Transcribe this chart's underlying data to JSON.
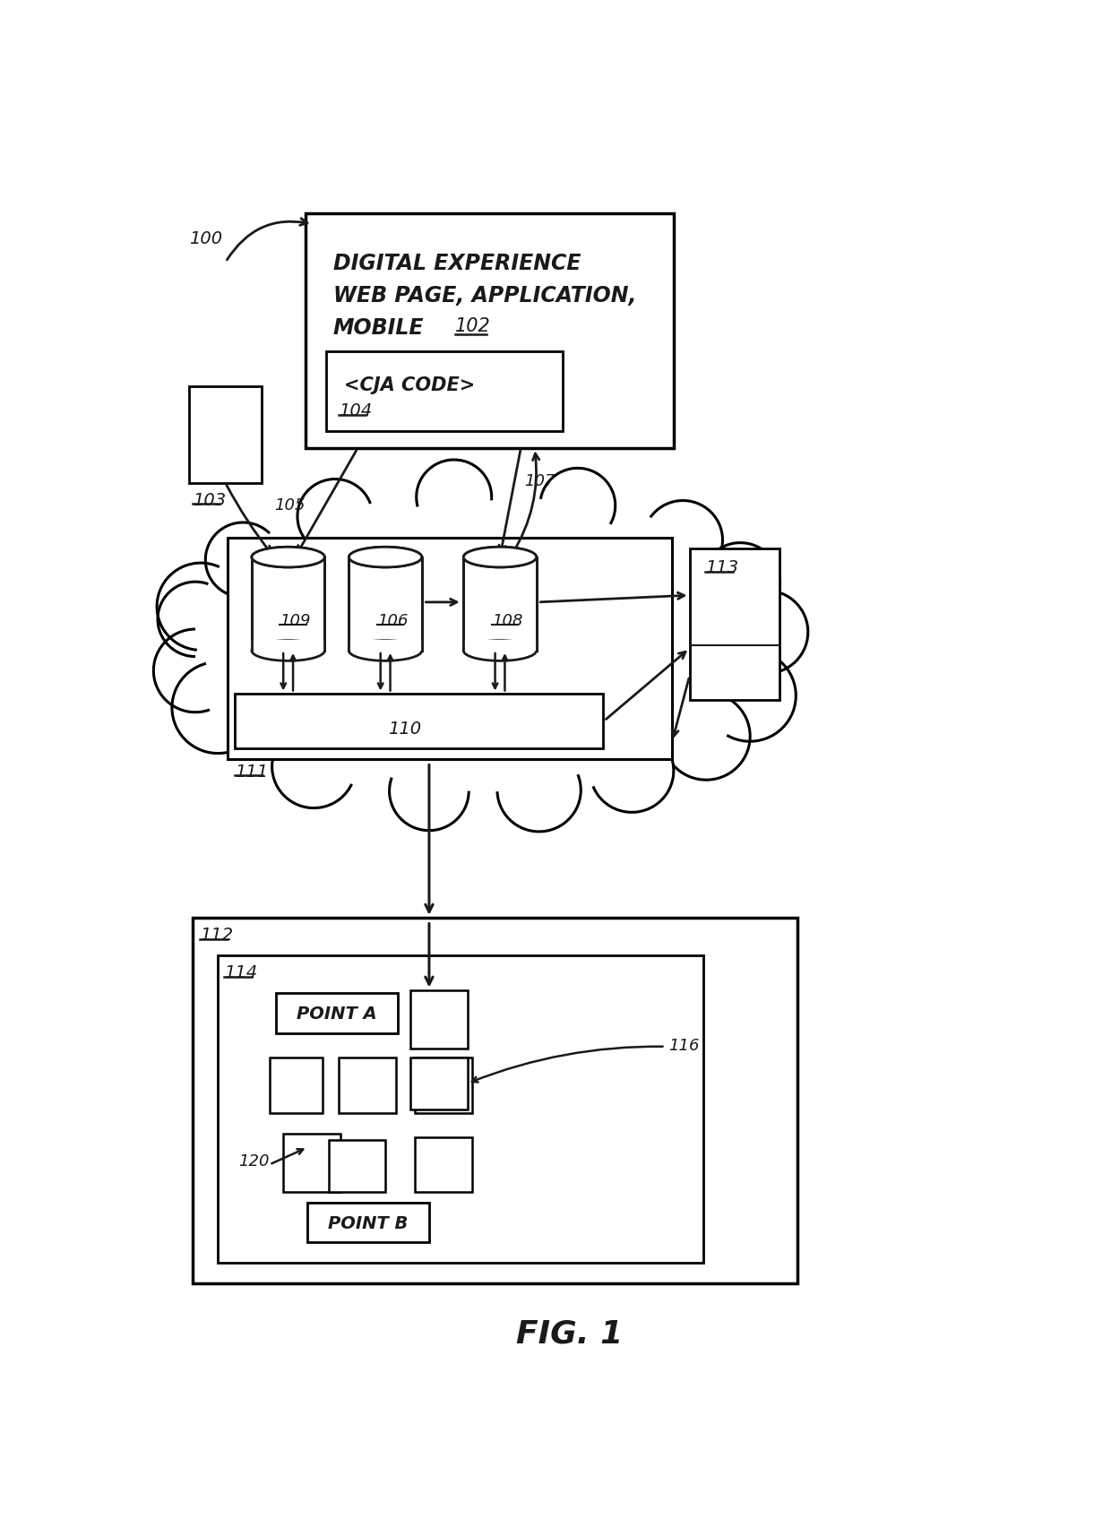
{
  "fig_label": "FIG. 1",
  "bg_color": "#ffffff",
  "line_color": "#1a1a1a",
  "text_digital": "DIGITAL EXPERIENCE",
  "text_webpage": "WEB PAGE, APPLICATION,",
  "text_mobile": "MOBILE",
  "text_102": "102",
  "text_cja": "<CJA CODE>",
  "text_104": "104",
  "text_100": "100",
  "text_103": "103",
  "text_105": "105",
  "text_107": "107",
  "text_109": "109",
  "text_106": "106",
  "text_108": "108",
  "text_110": "110",
  "text_111": "111",
  "text_113": "113",
  "text_112": "112",
  "text_114": "114",
  "text_116": "116",
  "text_120": "120",
  "text_pointa": "POINT A",
  "text_pointb": "POINT B"
}
